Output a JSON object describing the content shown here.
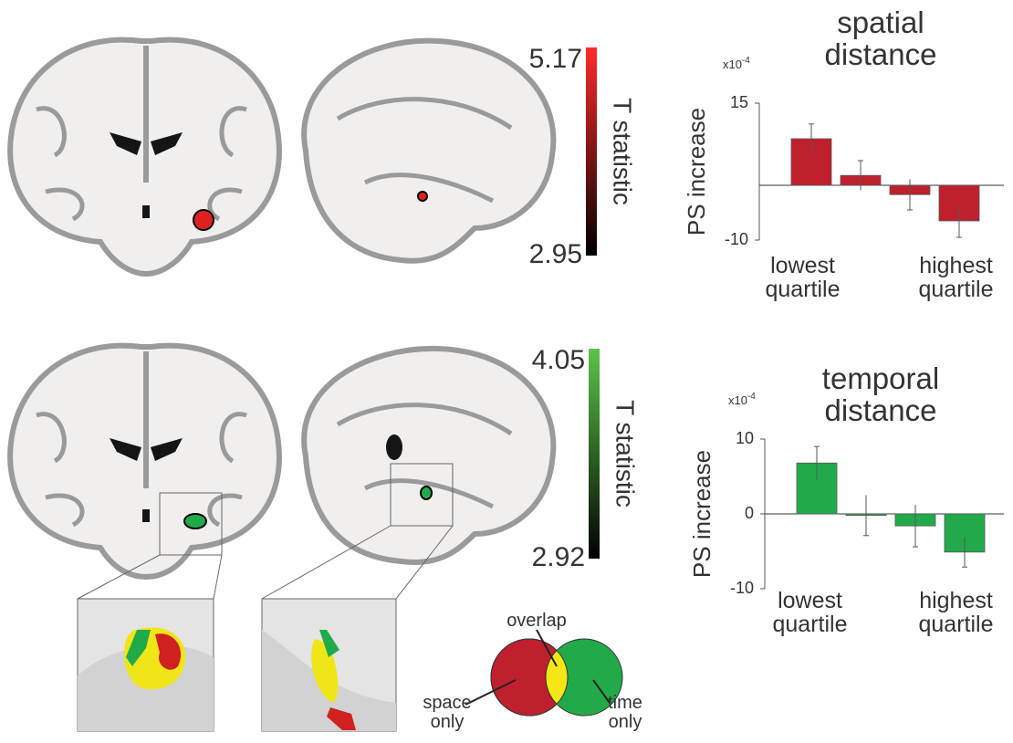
{
  "chart_data": [
    {
      "type": "bar",
      "title": "spatial distance",
      "ylabel": "PS increase",
      "multiplier": {
        "base": "x10",
        "exponent": "-4"
      },
      "categories": [
        "lowest quartile",
        null,
        null,
        "highest quartile"
      ],
      "values": [
        8.5,
        1.8,
        -1.7,
        -6.5
      ],
      "errors": [
        2.7,
        2.7,
        2.8,
        3.0
      ],
      "color": "#c0202e",
      "ylim": [
        -10,
        15
      ],
      "yticks": [
        -10,
        15
      ]
    },
    {
      "type": "bar",
      "title": "temporal distance",
      "ylabel": "PS increase",
      "multiplier": {
        "base": "x10",
        "exponent": "-4"
      },
      "categories": [
        "lowest quartile",
        null,
        null,
        "highest quartile"
      ],
      "values": [
        6.8,
        -0.2,
        -1.6,
        -5.1
      ],
      "errors": [
        2.2,
        2.7,
        2.8,
        2.0
      ],
      "color": "#22aa4a",
      "ylim": [
        -10,
        10
      ],
      "yticks": [
        -10,
        0,
        10
      ]
    }
  ],
  "colorbars": [
    {
      "label": "T statistic",
      "max": "5.17",
      "min": "2.95",
      "colors": [
        "#ff2a2a",
        "#000000"
      ]
    },
    {
      "label": "T statistic",
      "max": "4.05",
      "min": "2.92",
      "colors": [
        "#5cc44a",
        "#000000"
      ]
    }
  ],
  "venn": {
    "overlap": "overlap",
    "left": "space only",
    "right": "time only",
    "colors": [
      "#c0202e",
      "#f5e614",
      "#22aa4a"
    ]
  }
}
